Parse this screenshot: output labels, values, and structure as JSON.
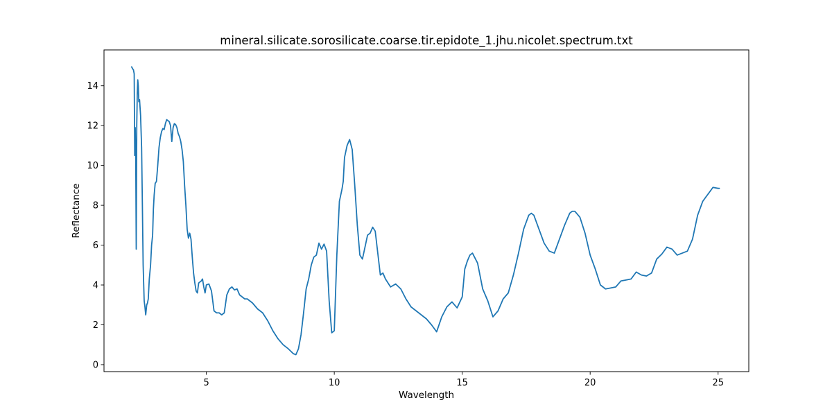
{
  "chart_data": {
    "type": "line",
    "title": "mineral.silicate.sorosilicate.coarse.tir.epidote_1.jhu.nicolet.spectrum.txt",
    "xlabel": "Wavelength",
    "ylabel": "Reflectance",
    "xlim": [
      1.0,
      26.2
    ],
    "ylim": [
      -0.35,
      15.8
    ],
    "xticks": [
      5,
      10,
      15,
      20,
      25
    ],
    "xtick_labels": [
      "5",
      "10",
      "15",
      "20",
      "25"
    ],
    "yticks": [
      0,
      2,
      4,
      6,
      8,
      10,
      12,
      14
    ],
    "ytick_labels": [
      "0",
      "2",
      "4",
      "6",
      "8",
      "10",
      "12",
      "14"
    ],
    "grid": false,
    "legend": "none",
    "series": [
      {
        "color": "#1f77b4",
        "x": [
          2.08,
          2.12,
          2.15,
          2.18,
          2.2,
          2.22,
          2.24,
          2.26,
          2.28,
          2.3,
          2.32,
          2.34,
          2.36,
          2.39,
          2.43,
          2.47,
          2.5,
          2.53,
          2.57,
          2.6,
          2.63,
          2.67,
          2.7,
          2.73,
          2.77,
          2.82,
          2.86,
          2.9,
          2.93,
          2.96,
          3.0,
          3.05,
          3.1,
          3.15,
          3.2,
          3.25,
          3.3,
          3.35,
          3.4,
          3.45,
          3.5,
          3.55,
          3.6,
          3.65,
          3.7,
          3.75,
          3.8,
          3.85,
          3.9,
          3.95,
          4.0,
          4.05,
          4.1,
          4.15,
          4.2,
          4.25,
          4.3,
          4.35,
          4.4,
          4.45,
          4.5,
          4.55,
          4.6,
          4.65,
          4.7,
          4.75,
          4.8,
          4.85,
          4.9,
          4.95,
          5.0,
          5.1,
          5.2,
          5.3,
          5.4,
          5.5,
          5.6,
          5.7,
          5.8,
          5.9,
          6.0,
          6.1,
          6.2,
          6.3,
          6.4,
          6.5,
          6.6,
          6.8,
          7.0,
          7.2,
          7.4,
          7.6,
          7.8,
          8.0,
          8.2,
          8.4,
          8.5,
          8.6,
          8.7,
          8.8,
          8.9,
          9.0,
          9.1,
          9.2,
          9.3,
          9.4,
          9.5,
          9.6,
          9.7,
          9.8,
          9.9,
          10.0,
          10.1,
          10.2,
          10.3,
          10.35,
          10.4,
          10.5,
          10.6,
          10.7,
          10.8,
          10.9,
          11.0,
          11.1,
          11.2,
          11.3,
          11.4,
          11.5,
          11.6,
          11.7,
          11.8,
          11.9,
          12.0,
          12.2,
          12.4,
          12.6,
          12.8,
          13.0,
          13.2,
          13.4,
          13.6,
          13.8,
          14.0,
          14.2,
          14.4,
          14.6,
          14.8,
          15.0,
          15.1,
          15.2,
          15.3,
          15.4,
          15.6,
          15.8,
          16.0,
          16.2,
          16.4,
          16.6,
          16.8,
          17.0,
          17.2,
          17.4,
          17.6,
          17.7,
          17.8,
          18.0,
          18.2,
          18.4,
          18.6,
          18.8,
          19.0,
          19.2,
          19.3,
          19.4,
          19.6,
          19.8,
          20.0,
          20.2,
          20.4,
          20.6,
          20.8,
          21.0,
          21.2,
          21.4,
          21.6,
          21.8,
          22.0,
          22.2,
          22.4,
          22.6,
          22.8,
          23.0,
          23.2,
          23.4,
          23.6,
          23.8,
          24.0,
          24.2,
          24.4,
          24.6,
          24.8,
          25.0,
          25.05
        ],
        "y": [
          14.95,
          14.85,
          14.8,
          14.6,
          10.5,
          11.9,
          10.5,
          5.8,
          12.0,
          13.6,
          14.3,
          14.0,
          13.2,
          13.3,
          12.5,
          10.9,
          8.0,
          5.0,
          3.2,
          2.9,
          2.5,
          3.0,
          3.1,
          3.3,
          4.3,
          5.0,
          6.0,
          6.5,
          7.8,
          8.5,
          9.1,
          9.2,
          10.0,
          10.9,
          11.4,
          11.7,
          11.85,
          11.8,
          12.1,
          12.3,
          12.25,
          12.2,
          12.0,
          11.2,
          11.9,
          12.1,
          12.05,
          11.9,
          11.6,
          11.45,
          11.2,
          10.8,
          10.2,
          9.0,
          8.0,
          6.8,
          6.35,
          6.6,
          6.3,
          5.4,
          4.6,
          4.1,
          3.7,
          3.6,
          4.1,
          4.15,
          4.2,
          4.3,
          3.9,
          3.6,
          4.0,
          4.05,
          3.7,
          2.7,
          2.6,
          2.6,
          2.5,
          2.6,
          3.5,
          3.8,
          3.9,
          3.75,
          3.8,
          3.5,
          3.4,
          3.3,
          3.3,
          3.1,
          2.8,
          2.6,
          2.2,
          1.7,
          1.3,
          1.0,
          0.8,
          0.55,
          0.5,
          0.8,
          1.5,
          2.6,
          3.8,
          4.3,
          5.0,
          5.4,
          5.5,
          6.1,
          5.8,
          6.05,
          5.7,
          3.2,
          1.6,
          1.7,
          5.5,
          8.2,
          8.8,
          9.2,
          10.4,
          11.0,
          11.3,
          10.8,
          9.0,
          7.0,
          5.5,
          5.3,
          5.9,
          6.5,
          6.6,
          6.9,
          6.7,
          5.6,
          4.5,
          4.6,
          4.3,
          3.9,
          4.05,
          3.8,
          3.3,
          2.9,
          2.7,
          2.5,
          2.3,
          2.0,
          1.65,
          2.4,
          2.9,
          3.15,
          2.85,
          3.4,
          4.8,
          5.2,
          5.5,
          5.6,
          5.1,
          3.8,
          3.2,
          2.4,
          2.7,
          3.3,
          3.6,
          4.5,
          5.6,
          6.8,
          7.5,
          7.6,
          7.5,
          6.8,
          6.1,
          5.7,
          5.6,
          6.3,
          7.0,
          7.6,
          7.7,
          7.7,
          7.4,
          6.6,
          5.5,
          4.8,
          4.0,
          3.8,
          3.85,
          3.9,
          4.2,
          4.25,
          4.3,
          4.65,
          4.5,
          4.45,
          4.6,
          5.3,
          5.55,
          5.9,
          5.8,
          5.5,
          5.6,
          5.7,
          6.3,
          7.5,
          8.2,
          8.55,
          8.9,
          8.85,
          8.85
        ]
      }
    ]
  }
}
